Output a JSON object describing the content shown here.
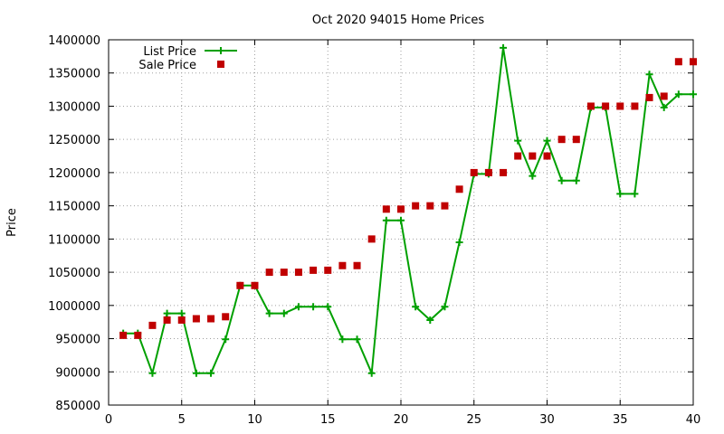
{
  "chart_data": {
    "type": "line",
    "title": "Oct 2020 94015 Home Prices",
    "xlabel": "",
    "ylabel": "Price",
    "xlim": [
      0,
      40
    ],
    "ylim": [
      850000,
      1400000
    ],
    "x_ticks": [
      0,
      5,
      10,
      15,
      20,
      25,
      30,
      35,
      40
    ],
    "y_ticks": [
      850000,
      900000,
      950000,
      1000000,
      1050000,
      1100000,
      1150000,
      1200000,
      1250000,
      1300000,
      1350000,
      1400000
    ],
    "grid": true,
    "legend_position": "top-left",
    "series": [
      {
        "name": "List Price",
        "style": "line+cross",
        "color": "#00a000",
        "x": [
          1,
          2,
          3,
          4,
          5,
          6,
          7,
          8,
          9,
          10,
          11,
          12,
          13,
          14,
          15,
          16,
          17,
          18,
          19,
          20,
          21,
          22,
          23,
          24,
          25,
          26,
          27,
          28,
          29,
          30,
          31,
          32,
          33,
          34,
          35,
          36,
          37,
          38,
          39,
          40
        ],
        "values": [
          958000,
          958000,
          898000,
          988000,
          988000,
          898000,
          898000,
          949000,
          1030000,
          1030000,
          988000,
          988000,
          998000,
          998000,
          998000,
          949000,
          949000,
          898000,
          1128000,
          1128000,
          998000,
          978000,
          998000,
          1095000,
          1198000,
          1198000,
          1388000,
          1248000,
          1195000,
          1248000,
          1188000,
          1188000,
          1298000,
          1298000,
          1168000,
          1168000,
          1348000,
          1298000,
          1318000,
          1318000
        ]
      },
      {
        "name": "Sale Price",
        "style": "square",
        "color": "#c00000",
        "x": [
          1,
          2,
          3,
          4,
          5,
          6,
          7,
          8,
          9,
          10,
          11,
          12,
          13,
          14,
          15,
          16,
          17,
          18,
          19,
          20,
          21,
          22,
          23,
          24,
          25,
          26,
          27,
          28,
          29,
          30,
          31,
          32,
          33,
          34,
          35,
          36,
          37,
          38,
          39,
          40
        ],
        "values": [
          955000,
          955000,
          970000,
          978000,
          978000,
          980000,
          980000,
          983000,
          1030000,
          1030000,
          1050000,
          1050000,
          1050000,
          1053000,
          1053000,
          1060000,
          1060000,
          1100000,
          1145000,
          1145000,
          1150000,
          1150000,
          1150000,
          1175000,
          1200000,
          1200000,
          1200000,
          1225000,
          1225000,
          1225000,
          1250000,
          1250000,
          1300000,
          1300000,
          1300000,
          1300000,
          1313000,
          1315000,
          1367000,
          1367000
        ]
      }
    ]
  }
}
